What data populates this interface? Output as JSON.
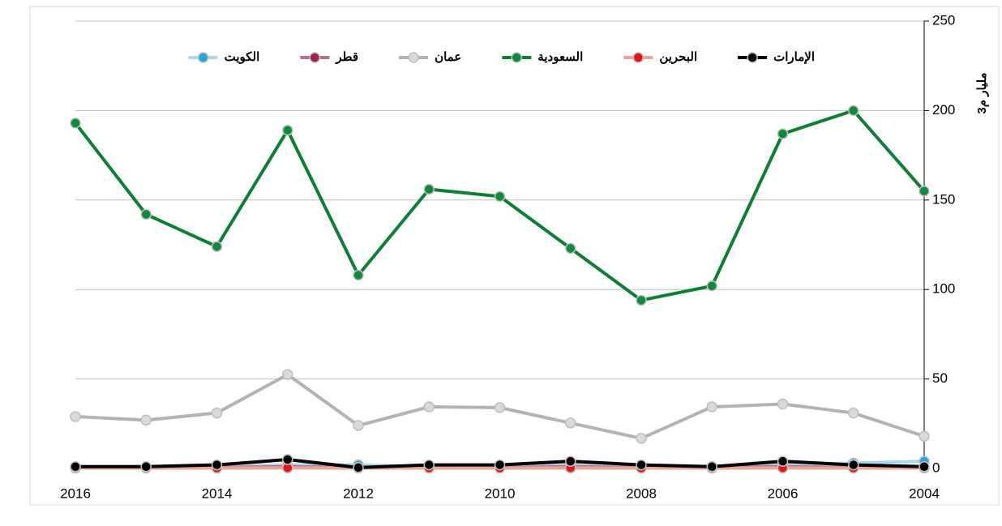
{
  "chart_data": {
    "type": "line",
    "y_label": "مليار م3",
    "x": [
      2016,
      2015,
      2014,
      2013,
      2012,
      2011,
      2010,
      2009,
      2008,
      2007,
      2006,
      2005,
      2004
    ],
    "xlim": [
      2016,
      2004
    ],
    "xticks": [
      2016,
      2014,
      2012,
      2010,
      2008,
      2006,
      2004
    ],
    "ylim": [
      0,
      250
    ],
    "yticks": [
      0,
      50,
      100,
      150,
      200,
      250
    ],
    "grid": true,
    "legend": "top",
    "series": [
      {
        "name": "الإمارات",
        "color": "#000000",
        "marker_color": "#000000",
        "values": [
          1,
          1,
          2,
          5,
          0.5,
          2,
          2,
          4,
          2,
          1,
          4,
          2,
          1
        ]
      },
      {
        "name": "البحرين",
        "color": "#e8a598",
        "marker_color": "#ee1111",
        "values": [
          0.2,
          0.2,
          0.2,
          0.3,
          0.2,
          0.2,
          0.2,
          0.3,
          0.2,
          0.2,
          0.3,
          0.2,
          0.2
        ]
      },
      {
        "name": "السعودية",
        "color": "#0b8035",
        "marker_color": "#0e8a3a",
        "values": [
          193,
          142,
          124,
          189,
          108,
          156,
          152,
          123,
          94,
          102,
          187,
          200,
          155
        ]
      },
      {
        "name": "عمان",
        "color": "#b3b3b3",
        "marker_color": "#d9d9d9",
        "values": [
          29,
          27,
          31,
          52.5,
          24,
          34.4,
          34,
          25.4,
          16.8,
          34.4,
          36,
          31,
          18
        ]
      },
      {
        "name": "قطر",
        "color": "#b8708a",
        "marker_color": "#a0204f",
        "values": [
          0.5,
          0.5,
          0.5,
          1,
          0.5,
          0.5,
          0.5,
          1,
          0.5,
          0.5,
          1,
          0.5,
          0.5
        ]
      },
      {
        "name": "الكويت",
        "color": "#a8d8ea",
        "marker_color": "#1fa8dc",
        "values": [
          1,
          1,
          1,
          2,
          2,
          1,
          1,
          2,
          1,
          1,
          2,
          3,
          4
        ]
      }
    ]
  }
}
